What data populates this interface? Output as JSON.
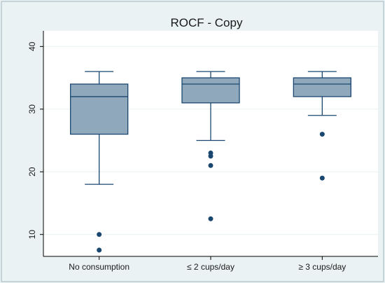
{
  "chart_data": {
    "type": "box",
    "title": "ROCF - Copy",
    "xlabel": "",
    "ylabel": "",
    "ylim": [
      6.5,
      42.5
    ],
    "yticks": [
      10,
      20,
      30,
      40
    ],
    "grid": true,
    "categories": [
      "No consumption",
      "≤ 2 cups/day",
      "≥ 3 cups/day"
    ],
    "boxes": [
      {
        "whisker_low": 18,
        "q1": 26,
        "median": 32,
        "q3": 34,
        "whisker_high": 36,
        "outliers": [
          10,
          7.5
        ]
      },
      {
        "whisker_low": 25,
        "q1": 31,
        "median": 34,
        "q3": 35,
        "whisker_high": 36,
        "outliers": [
          23,
          22.5,
          21,
          12.5
        ]
      },
      {
        "whisker_low": 29,
        "q1": 32,
        "median": 34,
        "q3": 35,
        "whisker_high": 36,
        "outliers": [
          26,
          19
        ]
      }
    ],
    "colors": {
      "box_fill": "#90a8bc",
      "line": "#1a476f",
      "grid": "#eaf2f3",
      "background": "#eaf2f3",
      "plot_bg": "#ffffff"
    }
  }
}
